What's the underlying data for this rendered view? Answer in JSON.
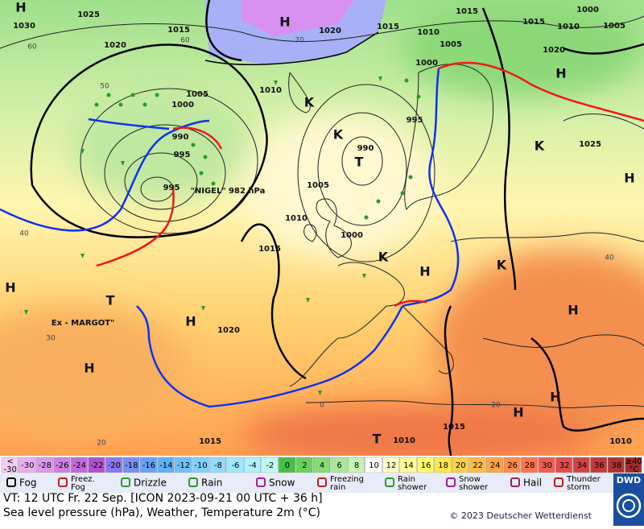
{
  "map": {
    "isobar_labels": [
      "1025",
      "1030",
      "1020",
      "1015",
      "1020",
      "1015",
      "1010",
      "1005",
      "1015",
      "1000",
      "1015",
      "1010",
      "1000",
      "1005",
      "1020",
      "1005",
      "1000",
      "1010",
      "990",
      "995",
      "995",
      "990",
      "995",
      "1005",
      "1010",
      "1000",
      "1015",
      "1020",
      "1025",
      "1015",
      "1015",
      "1010",
      "1010"
    ],
    "temperature_labels": [
      "60",
      "60",
      "50",
      "70",
      "40",
      "30",
      "20",
      "20",
      "0",
      "40"
    ],
    "centers": [
      "H",
      "H",
      "H",
      "H",
      "H",
      "H",
      "H",
      "H",
      "H",
      "H",
      "H",
      "T",
      "T",
      "T",
      "K",
      "K",
      "K",
      "K",
      "K"
    ],
    "names": [
      "\"NIGEL\" 982 hPa",
      "Ex - MARGOT\""
    ]
  },
  "color_scale": [
    {
      "label": "<\n-30",
      "color": "#f3cdf8"
    },
    {
      "label": "-30",
      "color": "#e8b0f2"
    },
    {
      "label": "-28",
      "color": "#dc98ec"
    },
    {
      "label": "-26",
      "color": "#d080e4"
    },
    {
      "label": "-24",
      "color": "#c468dc"
    },
    {
      "label": "-22",
      "color": "#b050d0"
    },
    {
      "label": "-20",
      "color": "#8c78ec"
    },
    {
      "label": "-18",
      "color": "#7890f4"
    },
    {
      "label": "-16",
      "color": "#68a0fa"
    },
    {
      "label": "-14",
      "color": "#60b0ff"
    },
    {
      "label": "-12",
      "color": "#70c0ff"
    },
    {
      "label": "-10",
      "color": "#80d0ff"
    },
    {
      "label": "-8",
      "color": "#90dcff"
    },
    {
      "label": "-6",
      "color": "#a0e8ff"
    },
    {
      "label": "-4",
      "color": "#b0f2fa"
    },
    {
      "label": "-2",
      "color": "#c0faf2"
    },
    {
      "label": "0",
      "color": "#48c048"
    },
    {
      "label": "2",
      "color": "#68d058"
    },
    {
      "label": "4",
      "color": "#88dc78"
    },
    {
      "label": "6",
      "color": "#a8e898"
    },
    {
      "label": "8",
      "color": "#c8f2b8"
    },
    {
      "label": "10",
      "color": "#ffffff"
    },
    {
      "label": "12",
      "color": "#ffffc8"
    },
    {
      "label": "14",
      "color": "#ffff98"
    },
    {
      "label": "16",
      "color": "#ffff68"
    },
    {
      "label": "18",
      "color": "#ffe848"
    },
    {
      "label": "20",
      "color": "#ffd048"
    },
    {
      "label": "22",
      "color": "#ffbc48"
    },
    {
      "label": "24",
      "color": "#ffa448"
    },
    {
      "label": "26",
      "color": "#ff8c48"
    },
    {
      "label": "28",
      "color": "#ff7448"
    },
    {
      "label": "30",
      "color": "#f05c50"
    },
    {
      "label": "32",
      "color": "#e04c4c"
    },
    {
      "label": "34",
      "color": "#d04444"
    },
    {
      "label": "36",
      "color": "#c03c3c"
    },
    {
      "label": "38",
      "color": "#b03434"
    },
    {
      "label": "≥40\n°C",
      "color": "#a02c2c"
    }
  ],
  "symbol_legend": [
    "Fog",
    "Freez.\nFog",
    "Drizzle",
    "Rain",
    "Snow",
    "Freezing\nrain",
    "Rain\nshower",
    "Snow\nshower",
    "Hail",
    "Thunder\nstorm"
  ],
  "footer": {
    "valid_time": "VT: 12 UTC Fr.  22 Sep. [ICON 2023-09-21  00 UTC + 36 h]",
    "description": "Sea level pressure (hPa), Weather, Temperature 2m (°C)",
    "copyright": "© 2023 Deutscher Wetterdienst",
    "logo": "DWD"
  }
}
